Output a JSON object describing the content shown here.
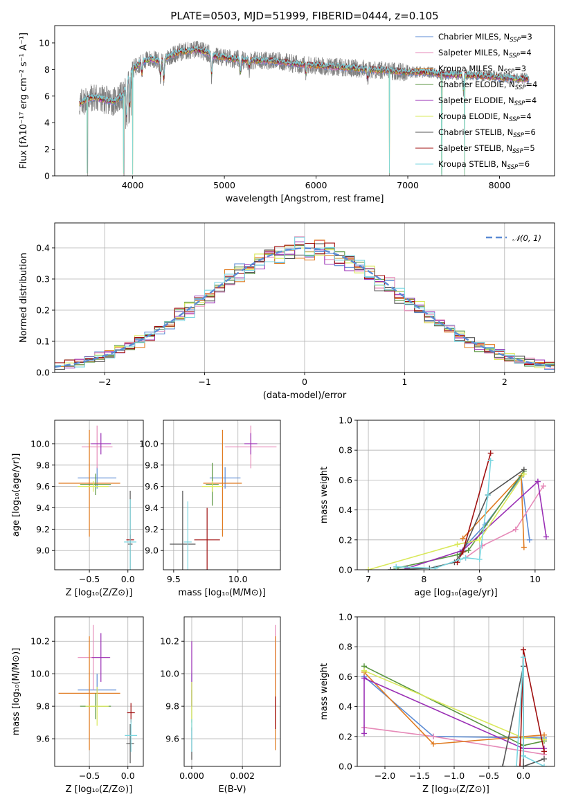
{
  "title": "PLATE=0503, MJD=51999, FIBERID=0444, z=0.105",
  "colors": {
    "Chabrier MILES": "#5b8bd4",
    "Salpeter MILES": "#e68ab8",
    "Kroupa MILES": "#e07b20",
    "Chabrier ELODIE": "#5a9640",
    "Salpeter ELODIE": "#9a2fb5",
    "Kroupa ELODIE": "#d9e85a",
    "Chabrier STELIB": "#555555",
    "Salpeter STELIB": "#a01010",
    "Kroupa STELIB": "#7ad6e0",
    "data": "#808080"
  },
  "chart_data": [
    {
      "id": "spectrum",
      "type": "line",
      "xlabel": "wavelength [Angstrom, rest frame]",
      "ylabel": "Flux [fλ10⁻¹⁷ erg cm⁻² s⁻¹ A⁻¹]",
      "xlim": [
        3150,
        8600
      ],
      "ylim": [
        0,
        11.3
      ],
      "xticks": [
        4000,
        5000,
        6000,
        7000,
        8000
      ],
      "yticks": [
        0,
        2,
        4,
        6,
        8,
        10
      ],
      "grid": false,
      "legend_position": "top-right",
      "legend": [
        {
          "model": "Chabrier MILES",
          "label": "Chabrier MILES, N",
          "sub": "SSP",
          "n": "=3"
        },
        {
          "model": "Salpeter MILES",
          "label": "Salpeter MILES, N",
          "sub": "SSP",
          "n": "=4"
        },
        {
          "model": "Kroupa MILES",
          "label": "Kroupa MILES, N",
          "sub": "SSP",
          "n": "=3"
        },
        {
          "model": "Chabrier ELODIE",
          "label": "Chabrier ELODIE, N",
          "sub": "SSP",
          "n": "=4"
        },
        {
          "model": "Salpeter ELODIE",
          "label": "Salpeter ELODIE, N",
          "sub": "SSP",
          "n": "=4"
        },
        {
          "model": "Kroupa ELODIE",
          "label": "Kroupa ELODIE, N",
          "sub": "SSP",
          "n": "=4"
        },
        {
          "model": "Chabrier STELIB",
          "label": "Chabrier STELIB, N",
          "sub": "SSP",
          "n": "=6"
        },
        {
          "model": "Salpeter STELIB",
          "label": "Salpeter STELIB, N",
          "sub": "SSP",
          "n": "=5"
        },
        {
          "model": "Kroupa STELIB",
          "label": "Kroupa STELIB, N",
          "sub": "SSP",
          "n": "=6"
        }
      ],
      "continuum": [
        [
          3420,
          5.4
        ],
        [
          3500,
          5.8
        ],
        [
          3600,
          5.9
        ],
        [
          3700,
          5.7
        ],
        [
          3800,
          5.6
        ],
        [
          3900,
          6.1
        ],
        [
          3950,
          7.3
        ],
        [
          4000,
          8.0
        ],
        [
          4100,
          8.6
        ],
        [
          4200,
          8.8
        ],
        [
          4300,
          8.6
        ],
        [
          4400,
          9.0
        ],
        [
          4500,
          9.3
        ],
        [
          4600,
          9.4
        ],
        [
          4700,
          9.5
        ],
        [
          4800,
          9.3
        ],
        [
          4900,
          9.0
        ],
        [
          5000,
          8.9
        ],
        [
          5200,
          8.7
        ],
        [
          5400,
          8.7
        ],
        [
          5600,
          8.6
        ],
        [
          5800,
          8.4
        ],
        [
          6000,
          8.3
        ],
        [
          6200,
          8.2
        ],
        [
          6400,
          8.1
        ],
        [
          6600,
          8.0
        ],
        [
          6800,
          7.9
        ],
        [
          7000,
          7.8
        ],
        [
          7200,
          7.8
        ],
        [
          7400,
          7.6
        ],
        [
          7600,
          7.6
        ],
        [
          7800,
          7.5
        ],
        [
          8000,
          7.4
        ],
        [
          8200,
          7.3
        ],
        [
          8320,
          7.3
        ]
      ],
      "absorption_features": [
        [
          3934,
          3.8
        ],
        [
          3969,
          4.6
        ],
        [
          4101,
          7.5
        ],
        [
          4304,
          7.3
        ],
        [
          4340,
          6.9
        ],
        [
          4861,
          7.3
        ],
        [
          5175,
          7.6
        ],
        [
          5270,
          8.0
        ],
        [
          5890,
          7.6
        ],
        [
          6563,
          7.2
        ],
        [
          7605,
          6.2
        ]
      ],
      "data_dropouts": [
        3510,
        3905,
        6800,
        7370,
        7620
      ],
      "model_dips": [
        [
          3505,
          0.2
        ],
        [
          3900,
          0.2
        ],
        [
          4000,
          0.1
        ],
        [
          6800,
          0.2
        ],
        [
          7370,
          0.1
        ],
        [
          7620,
          0.1
        ]
      ]
    },
    {
      "id": "residuals",
      "type": "area",
      "xlabel": "(data-model)/error",
      "ylabel": "Normed distribution",
      "xlim": [
        -2.5,
        2.5
      ],
      "ylim": [
        0,
        0.48
      ],
      "xticks": [
        -2,
        -1,
        0,
        1,
        2
      ],
      "yticks": [
        0.0,
        0.1,
        0.2,
        0.3,
        0.4
      ],
      "grid": true,
      "legend_position": "top-right",
      "reference_label": "𝒩(0, 1)",
      "bins": 50
    },
    {
      "id": "age-vs-Z",
      "type": "scatter",
      "xlabel": "Z [log₁₀(Z/Z⊙)]",
      "ylabel": "age  [log₁₀(age/yr)]",
      "xlim": [
        -0.95,
        0.2
      ],
      "ylim": [
        8.82,
        10.22
      ],
      "xticks": [
        -0.5,
        0.0
      ],
      "yticks": [
        9.0,
        9.2,
        9.4,
        9.6,
        9.8,
        10.0
      ],
      "grid": true,
      "points": [
        {
          "model": "Chabrier MILES",
          "x": -0.4,
          "xe": 0.25,
          "y": 9.68,
          "ye": 0.1
        },
        {
          "model": "Salpeter MILES",
          "x": -0.4,
          "xe": 0.2,
          "y": 9.97,
          "ye": 0.2
        },
        {
          "model": "Kroupa MILES",
          "x": -0.5,
          "xe": 0.4,
          "y": 9.63,
          "ye": 0.5
        },
        {
          "model": "Chabrier ELODIE",
          "x": -0.42,
          "xe": 0.2,
          "y": 9.62,
          "ye": 0.1
        },
        {
          "model": "Salpeter ELODIE",
          "x": -0.35,
          "xe": 0.13,
          "y": 10.0,
          "ye": 0.1
        },
        {
          "model": "Kroupa ELODIE",
          "x": -0.45,
          "xe": 0.2,
          "y": 9.6,
          "ye": 0.05
        },
        {
          "model": "Chabrier STELIB",
          "x": 0.03,
          "xe": 0.03,
          "y": 9.06,
          "ye": 0.5
        },
        {
          "model": "Salpeter STELIB",
          "x": 0.03,
          "xe": 0.05,
          "y": 9.1,
          "ye": 0.05
        },
        {
          "model": "Kroupa STELIB",
          "x": 0.03,
          "xe": 0.08,
          "y": 9.08,
          "ye": 0.4
        }
      ]
    },
    {
      "id": "age-vs-mass",
      "type": "scatter",
      "xlabel": "mass [log₁₀(M/M⊙)]",
      "ylabel": "",
      "xlim": [
        9.42,
        10.33
      ],
      "ylim": [
        8.82,
        10.22
      ],
      "xticks": [
        9.5,
        10.0
      ],
      "yticks": [
        9.0,
        9.2,
        9.4,
        9.6,
        9.8,
        10.0
      ],
      "grid": true,
      "points": [
        {
          "model": "Chabrier MILES",
          "x": 9.9,
          "xe": 0.12,
          "y": 9.68,
          "ye": 0.1
        },
        {
          "model": "Salpeter MILES",
          "x": 10.1,
          "xe": 0.2,
          "y": 9.97,
          "ye": 0.2
        },
        {
          "model": "Kroupa MILES",
          "x": 9.88,
          "xe": 0.15,
          "y": 9.63,
          "ye": 0.5
        },
        {
          "model": "Chabrier ELODIE",
          "x": 9.8,
          "xe": 0.05,
          "y": 9.62,
          "ye": 0.2
        },
        {
          "model": "Salpeter ELODIE",
          "x": 10.1,
          "xe": 0.05,
          "y": 10.0,
          "ye": 0.1
        },
        {
          "model": "Kroupa ELODIE",
          "x": 9.8,
          "xe": 0.08,
          "y": 9.6,
          "ye": 0.05
        },
        {
          "model": "Chabrier STELIB",
          "x": 9.57,
          "xe": 0.1,
          "y": 9.06,
          "ye": 0.5
        },
        {
          "model": "Salpeter STELIB",
          "x": 9.76,
          "xe": 0.1,
          "y": 9.1,
          "ye": 0.3
        },
        {
          "model": "Kroupa STELIB",
          "x": 9.61,
          "xe": 0.03,
          "y": 9.08,
          "ye": 0.38
        }
      ]
    },
    {
      "id": "mass-weight-vs-age",
      "type": "line",
      "xlabel": "age  [log₁₀(age/yr)]",
      "ylabel": "mass weight",
      "xlim": [
        6.8,
        10.35
      ],
      "ylim": [
        0,
        1.0
      ],
      "xticks": [
        7,
        8,
        9,
        10
      ],
      "yticks": [
        0.0,
        0.2,
        0.4,
        0.6,
        0.8,
        1.0
      ],
      "grid": true,
      "series": [
        {
          "model": "Chabrier MILES",
          "x": [
            8.65,
            9.1,
            9.75,
            9.9
          ],
          "y": [
            0.12,
            0.3,
            0.62,
            0.2
          ]
        },
        {
          "model": "Salpeter MILES",
          "x": [
            8.75,
            9.05,
            9.65,
            10.15
          ],
          "y": [
            0.08,
            0.16,
            0.27,
            0.56
          ]
        },
        {
          "model": "Kroupa MILES",
          "x": [
            8.7,
            9.75,
            9.8
          ],
          "y": [
            0.21,
            0.63,
            0.15
          ]
        },
        {
          "model": "Chabrier ELODIE",
          "x": [
            7.5,
            8.6,
            8.8,
            9.8
          ],
          "y": [
            0.01,
            0.1,
            0.13,
            0.66
          ]
        },
        {
          "model": "Salpeter ELODIE",
          "x": [
            7.7,
            8.7,
            10.05,
            10.2
          ],
          "y": [
            0.01,
            0.13,
            0.59,
            0.22
          ]
        },
        {
          "model": "Kroupa ELODIE",
          "x": [
            7.0,
            8.6,
            9.0,
            9.8
          ],
          "y": [
            0.0,
            0.17,
            0.2,
            0.64
          ]
        },
        {
          "model": "Chabrier STELIB",
          "x": [
            7.4,
            8.1,
            8.55,
            8.7,
            9.15,
            9.8
          ],
          "y": [
            0.0,
            0.01,
            0.05,
            0.12,
            0.5,
            0.67
          ]
        },
        {
          "model": "Salpeter STELIB",
          "x": [
            8.6,
            8.7,
            9.2
          ],
          "y": [
            0.05,
            0.12,
            0.78
          ]
        },
        {
          "model": "Kroupa STELIB",
          "x": [
            7.5,
            8.2,
            8.65,
            8.75,
            9.0,
            9.15,
            9.2
          ],
          "y": [
            0.02,
            0.01,
            0.07,
            0.08,
            0.07,
            0.5,
            0.73
          ]
        }
      ]
    },
    {
      "id": "mass-vs-Z",
      "type": "scatter",
      "xlabel": "Z [log₁₀(Z/Z⊙)]",
      "ylabel": "mass [log₁₀(M/M⊙)]",
      "xlim": [
        -0.95,
        0.2
      ],
      "ylim": [
        9.43,
        10.35
      ],
      "xticks": [
        -0.5,
        0.0
      ],
      "yticks": [
        9.6,
        9.8,
        10.0,
        10.2
      ],
      "grid": true,
      "points": [
        {
          "model": "Chabrier MILES",
          "x": -0.4,
          "xe": 0.25,
          "y": 9.9,
          "ye": 0.1
        },
        {
          "model": "Salpeter MILES",
          "x": -0.45,
          "xe": 0.2,
          "y": 10.1,
          "ye": 0.2
        },
        {
          "model": "Kroupa MILES",
          "x": -0.5,
          "xe": 0.4,
          "y": 9.88,
          "ye": 0.35
        },
        {
          "model": "Chabrier ELODIE",
          "x": -0.42,
          "xe": 0.2,
          "y": 9.8,
          "ye": 0.08
        },
        {
          "model": "Salpeter ELODIE",
          "x": -0.35,
          "xe": 0.12,
          "y": 10.1,
          "ye": 0.15
        },
        {
          "model": "Kroupa ELODIE",
          "x": -0.4,
          "xe": 0.15,
          "y": 9.8,
          "ye": 0.12
        },
        {
          "model": "Chabrier STELIB",
          "x": 0.03,
          "xe": 0.05,
          "y": 9.57,
          "ye": 0.12
        },
        {
          "model": "Salpeter STELIB",
          "x": 0.04,
          "xe": 0.05,
          "y": 9.76,
          "ye": 0.06
        },
        {
          "model": "Kroupa STELIB",
          "x": 0.04,
          "xe": 0.08,
          "y": 9.62,
          "ye": 0.1
        }
      ]
    },
    {
      "id": "mass-vs-EBV",
      "type": "scatter",
      "xlabel": "E(B-V)",
      "ylabel": "",
      "xlim": [
        -0.0003,
        0.0035
      ],
      "ylim": [
        9.43,
        10.35
      ],
      "xticks": [
        0.0,
        0.002
      ],
      "xticklabels": [
        "0.000",
        "0.002"
      ],
      "yticks": [
        9.6,
        9.8,
        10.0,
        10.2
      ],
      "grid": true,
      "points": [
        {
          "model": "Chabrier MILES",
          "x": 0.0,
          "xe": 0,
          "y": 9.9,
          "ye": 0.1
        },
        {
          "model": "Salpeter MILES",
          "x": 0.0033,
          "xe": 0,
          "y": 10.1,
          "ye": 0.2
        },
        {
          "model": "Kroupa MILES",
          "x": 0.0033,
          "xe": 0,
          "y": 9.88,
          "ye": 0.35
        },
        {
          "model": "Chabrier ELODIE",
          "x": 0.0,
          "xe": 0,
          "y": 9.8,
          "ye": 0.1
        },
        {
          "model": "Salpeter ELODIE",
          "x": 0.0,
          "xe": 0,
          "y": 10.0,
          "ye": 0.2
        },
        {
          "model": "Kroupa ELODIE",
          "x": 0.0,
          "xe": 0,
          "y": 9.8,
          "ye": 0.15
        },
        {
          "model": "Chabrier STELIB",
          "x": 0.0,
          "xe": 0,
          "y": 9.57,
          "ye": 0.1
        },
        {
          "model": "Salpeter STELIB",
          "x": 0.0033,
          "xe": 0,
          "y": 9.76,
          "ye": 0.1
        },
        {
          "model": "Kroupa STELIB",
          "x": 0.0,
          "xe": 0,
          "y": 9.62,
          "ye": 0.1
        }
      ]
    },
    {
      "id": "mass-weight-vs-Z",
      "type": "line",
      "xlabel": "Z [log₁₀(Z/Z⊙)]",
      "ylabel": "mass weight",
      "xlim": [
        -2.4,
        0.45
      ],
      "ylim": [
        0,
        1.0
      ],
      "xticks": [
        -2.0,
        -1.5,
        -1.0,
        -0.5,
        0.0
      ],
      "yticks": [
        0.0,
        0.2,
        0.4,
        0.6,
        0.8,
        1.0
      ],
      "grid": true,
      "series": [
        {
          "model": "Chabrier MILES",
          "x": [
            -2.3,
            -1.3,
            0.3
          ],
          "y": [
            0.6,
            0.2,
            0.19
          ]
        },
        {
          "model": "Salpeter MILES",
          "x": [
            -2.3,
            -1.3,
            0.3
          ],
          "y": [
            0.26,
            0.2,
            0.08
          ]
        },
        {
          "model": "Kroupa MILES",
          "x": [
            -2.3,
            -1.3,
            0.3
          ],
          "y": [
            0.63,
            0.15,
            0.21
          ]
        },
        {
          "model": "Chabrier ELODIE",
          "x": [
            -2.3,
            0.0,
            0.3
          ],
          "y": [
            0.67,
            0.14,
            0.17
          ]
        },
        {
          "model": "Salpeter ELODIE",
          "x": [
            -2.3,
            -2.3,
            0.0,
            0.3
          ],
          "y": [
            0.22,
            0.59,
            0.12,
            0.12
          ]
        },
        {
          "model": "Kroupa ELODIE",
          "x": [
            -2.3,
            0.0,
            0.3
          ],
          "y": [
            0.64,
            0.19,
            0.18
          ]
        },
        {
          "model": "Chabrier STELIB",
          "x": [
            -0.3,
            0.0,
            0.0,
            0.3
          ],
          "y": [
            0.0,
            0.67,
            0.0,
            0.05
          ]
        },
        {
          "model": "Salpeter STELIB",
          "x": [
            -0.05,
            0.0,
            0.3
          ],
          "y": [
            0.0,
            0.78,
            0.1
          ]
        },
        {
          "model": "Kroupa STELIB",
          "x": [
            -0.1,
            0.0,
            0.0,
            0.3
          ],
          "y": [
            0.0,
            0.73,
            0.07,
            0.0
          ]
        }
      ]
    }
  ]
}
